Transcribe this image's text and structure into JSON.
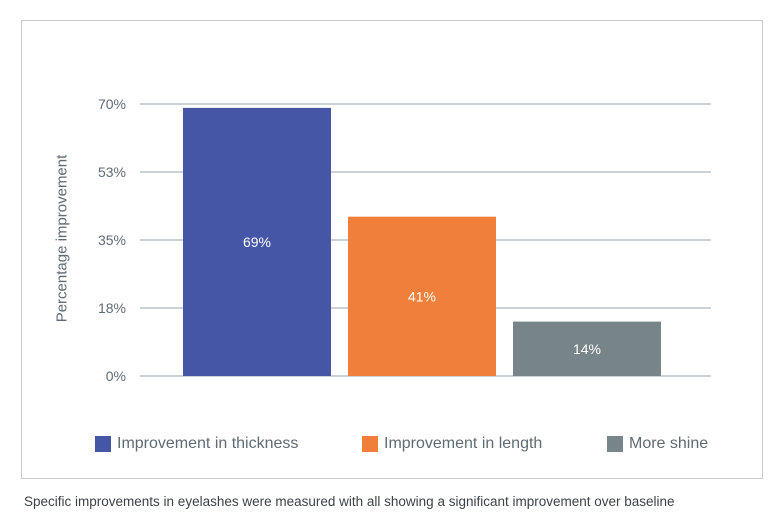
{
  "chart_data": {
    "type": "bar",
    "title": "",
    "xlabel": "",
    "ylabel": "Percentage improvement",
    "ylim": [
      0,
      70
    ],
    "yticks": [
      "0%",
      "18%",
      "35%",
      "53%",
      "70%"
    ],
    "ytick_values": [
      0,
      17.5,
      35,
      52.5,
      70
    ],
    "categories": [
      "Improvement in thickness",
      "Improvement in length",
      "More shine"
    ],
    "values": [
      69,
      41,
      14
    ],
    "data_labels": [
      "69%",
      "41%",
      "14%"
    ],
    "colors": [
      "#4656a7",
      "#f07f3c",
      "#778589"
    ],
    "grid": true,
    "legend": "bottom"
  },
  "caption": "Specific improvements in eyelashes were measured with all showing a significant improvement over baseline"
}
